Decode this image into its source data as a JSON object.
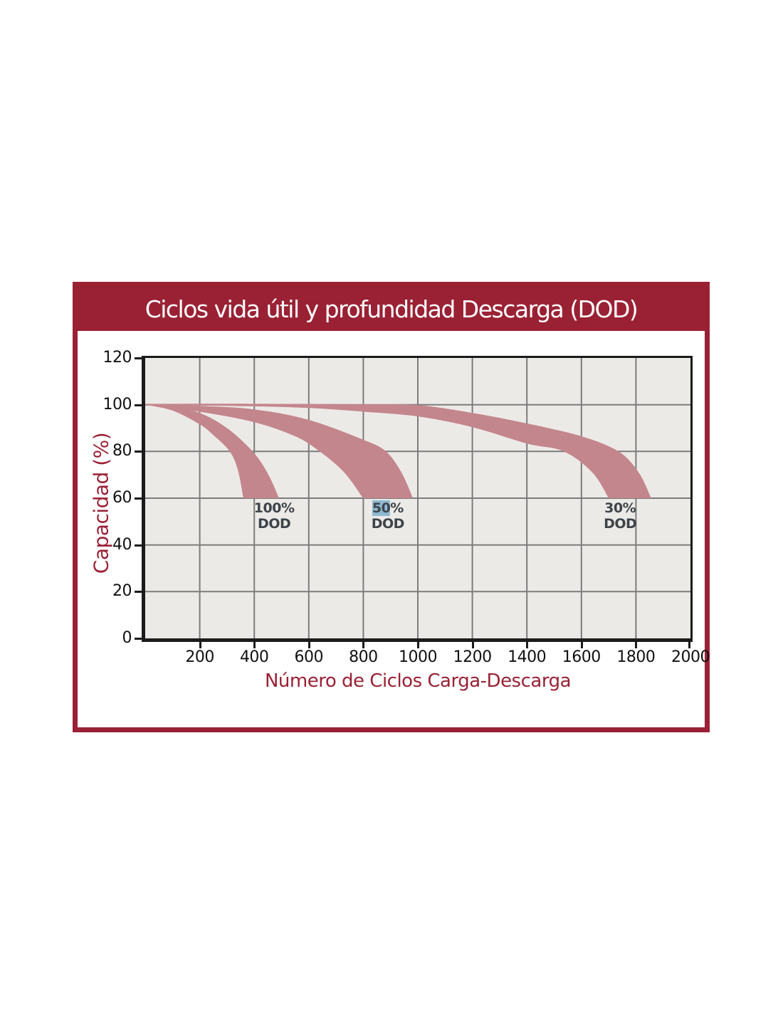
{
  "colors": {
    "maroon": "#9a2134",
    "plot_bg": "#eceae7",
    "grid": "#7c7c7c",
    "axis": "#1b1b1b",
    "band": "#c4868d",
    "tick": "#111111",
    "ann": "#3d4449",
    "hl": "#8fb9d2"
  },
  "chart_data": {
    "type": "area",
    "title": "Ciclos vida útil y profundidad Descarga (DOD)",
    "xlabel": "Número de Ciclos Carga-Descarga",
    "ylabel": "Capacidad (%)",
    "xlim": [
      0,
      2000
    ],
    "ylim": [
      0,
      120
    ],
    "x_ticks": [
      200,
      400,
      600,
      800,
      1000,
      1200,
      1400,
      1600,
      1800,
      2000
    ],
    "y_ticks": [
      0,
      20,
      40,
      60,
      80,
      100,
      120
    ],
    "grid": true,
    "legend_position": "none",
    "series": [
      {
        "name": "100% DOD",
        "band": true,
        "upper": [
          [
            0,
            100.2
          ],
          [
            100,
            99
          ],
          [
            200,
            96.5
          ],
          [
            300,
            90
          ],
          [
            394,
            80
          ],
          [
            450,
            70.5
          ],
          [
            491,
            60
          ]
        ],
        "lower": [
          [
            0,
            100
          ],
          [
            100,
            97.5
          ],
          [
            200,
            91.6
          ],
          [
            250,
            87
          ],
          [
            310,
            80
          ],
          [
            340,
            72
          ],
          [
            360,
            60
          ]
        ]
      },
      {
        "name": "50% DOD",
        "band": true,
        "upper": [
          [
            0,
            100.2
          ],
          [
            200,
            99.5
          ],
          [
            400,
            98
          ],
          [
            600,
            93.5
          ],
          [
            800,
            85
          ],
          [
            883,
            80
          ],
          [
            940,
            71
          ],
          [
            982,
            60
          ]
        ],
        "lower": [
          [
            0,
            100
          ],
          [
            200,
            97
          ],
          [
            400,
            92.5
          ],
          [
            550,
            86.5
          ],
          [
            640,
            80
          ],
          [
            730,
            71
          ],
          [
            799,
            60
          ]
        ]
      },
      {
        "name": "30% DOD",
        "band": true,
        "upper": [
          [
            0,
            100.4
          ],
          [
            400,
            100.4
          ],
          [
            800,
            100.2
          ],
          [
            1000,
            99.8
          ],
          [
            1200,
            96.5
          ],
          [
            1400,
            92
          ],
          [
            1600,
            86.5
          ],
          [
            1736,
            80
          ],
          [
            1810,
            71
          ],
          [
            1856,
            60
          ]
        ],
        "lower": [
          [
            0,
            100
          ],
          [
            400,
            99.3
          ],
          [
            600,
            98.6
          ],
          [
            800,
            97
          ],
          [
            1000,
            95
          ],
          [
            1200,
            90.4
          ],
          [
            1400,
            83.4
          ],
          [
            1535,
            80
          ],
          [
            1640,
            71
          ],
          [
            1700,
            60
          ]
        ]
      }
    ],
    "annotations": [
      {
        "x": 473,
        "y": 59,
        "lines": [
          [
            {
              "t": "100%",
              "hl": false
            }
          ],
          [
            {
              "t": "DOD",
              "hl": false
            }
          ]
        ]
      },
      {
        "x": 890,
        "y": 59,
        "lines": [
          [
            {
              "t": "50",
              "hl": true
            },
            {
              "t": "%",
              "hl": false
            }
          ],
          [
            {
              "t": "DOD",
              "hl": false
            }
          ]
        ]
      },
      {
        "x": 1742,
        "y": 59,
        "lines": [
          [
            {
              "t": "30%",
              "hl": false
            }
          ],
          [
            {
              "t": "DOD",
              "hl": false
            }
          ]
        ]
      }
    ]
  }
}
